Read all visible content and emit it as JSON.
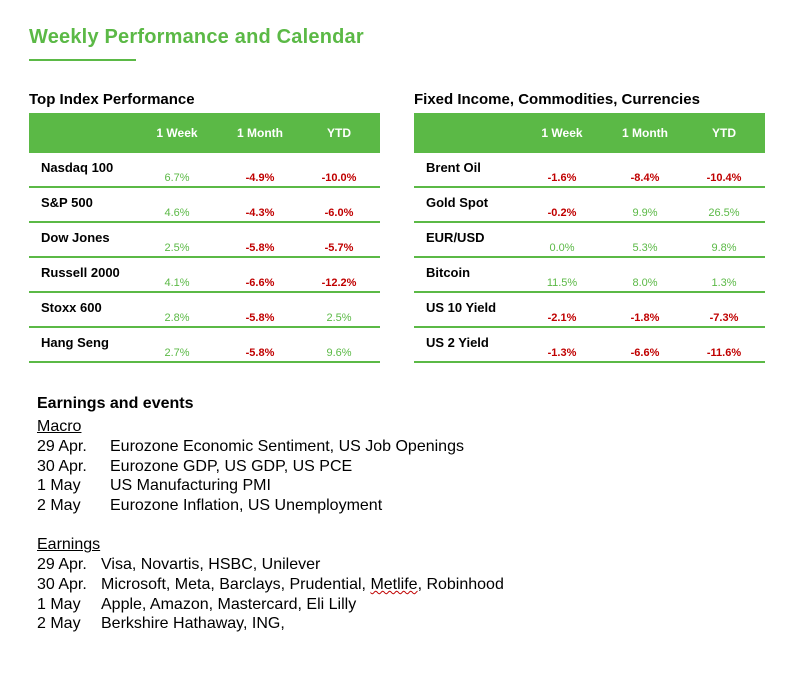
{
  "header": {
    "title": "Weekly Performance and Calendar"
  },
  "index_table": {
    "title": "Top Index Performance",
    "columns": [
      "1 Week",
      "1 Month",
      "YTD"
    ],
    "rows": [
      {
        "name": "Nasdaq 100",
        "w": "6.7%",
        "m": "-4.9%",
        "y": "-10.0%"
      },
      {
        "name": "S&P 500",
        "w": "4.6%",
        "m": "-4.3%",
        "y": "-6.0%"
      },
      {
        "name": "Dow Jones",
        "w": "2.5%",
        "m": "-5.8%",
        "y": "-5.7%"
      },
      {
        "name": "Russell 2000",
        "w": "4.1%",
        "m": "-6.6%",
        "y": "-12.2%"
      },
      {
        "name": "Stoxx 600",
        "w": "2.8%",
        "m": "-5.8%",
        "y": "2.5%"
      },
      {
        "name": "Hang Seng",
        "w": "2.7%",
        "m": "-5.8%",
        "y": "9.6%"
      }
    ]
  },
  "fixed_table": {
    "title": "Fixed Income, Commodities, Currencies",
    "columns": [
      "1 Week",
      "1 Month",
      "YTD"
    ],
    "rows": [
      {
        "name": "Brent Oil",
        "w": "-1.6%",
        "m": "-8.4%",
        "y": "-10.4%"
      },
      {
        "name": "Gold Spot",
        "w": "-0.2%",
        "m": "9.9%",
        "y": "26.5%"
      },
      {
        "name": "EUR/USD",
        "w": "0.0%",
        "m": "5.3%",
        "y": "9.8%"
      },
      {
        "name": "Bitcoin",
        "w": "11.5%",
        "m": "8.0%",
        "y": "1.3%"
      },
      {
        "name": "US 10 Yield",
        "w": "-2.1%",
        "m": "-1.8%",
        "y": "-7.3%"
      },
      {
        "name": "US 2 Yield",
        "w": "-1.3%",
        "m": "-6.6%",
        "y": "-11.6%"
      }
    ]
  },
  "events": {
    "title": "Earnings and events",
    "macro": {
      "label": "Macro",
      "items": [
        {
          "date": "29 Apr.",
          "text": "Eurozone Economic Sentiment, US Job Openings"
        },
        {
          "date": "30 Apr.",
          "text": "Eurozone GDP, US GDP, US PCE"
        },
        {
          "date": "1 May",
          "text": "US Manufacturing PMI"
        },
        {
          "date": "2 May",
          "text": "Eurozone Inflation, US Unemployment"
        }
      ]
    },
    "earnings": {
      "label": "Earnings",
      "items": [
        {
          "date": "29 Apr.",
          "text": "Visa, Novartis, HSBC, Unilever"
        },
        {
          "date": "30 Apr.",
          "pre": "Microsoft, Meta, Barclays, Prudential, ",
          "flag": "Metlife",
          "post": ", Robinhood"
        },
        {
          "date": "1 May",
          "text": "Apple, Amazon, Mastercard, Eli Lilly"
        },
        {
          "date": "2 May",
          "text": "Berkshire Hathaway, ING,"
        }
      ]
    }
  },
  "colors": {
    "accent": "#5bb946",
    "negative": "#c00000",
    "positive": "#5bb946"
  }
}
